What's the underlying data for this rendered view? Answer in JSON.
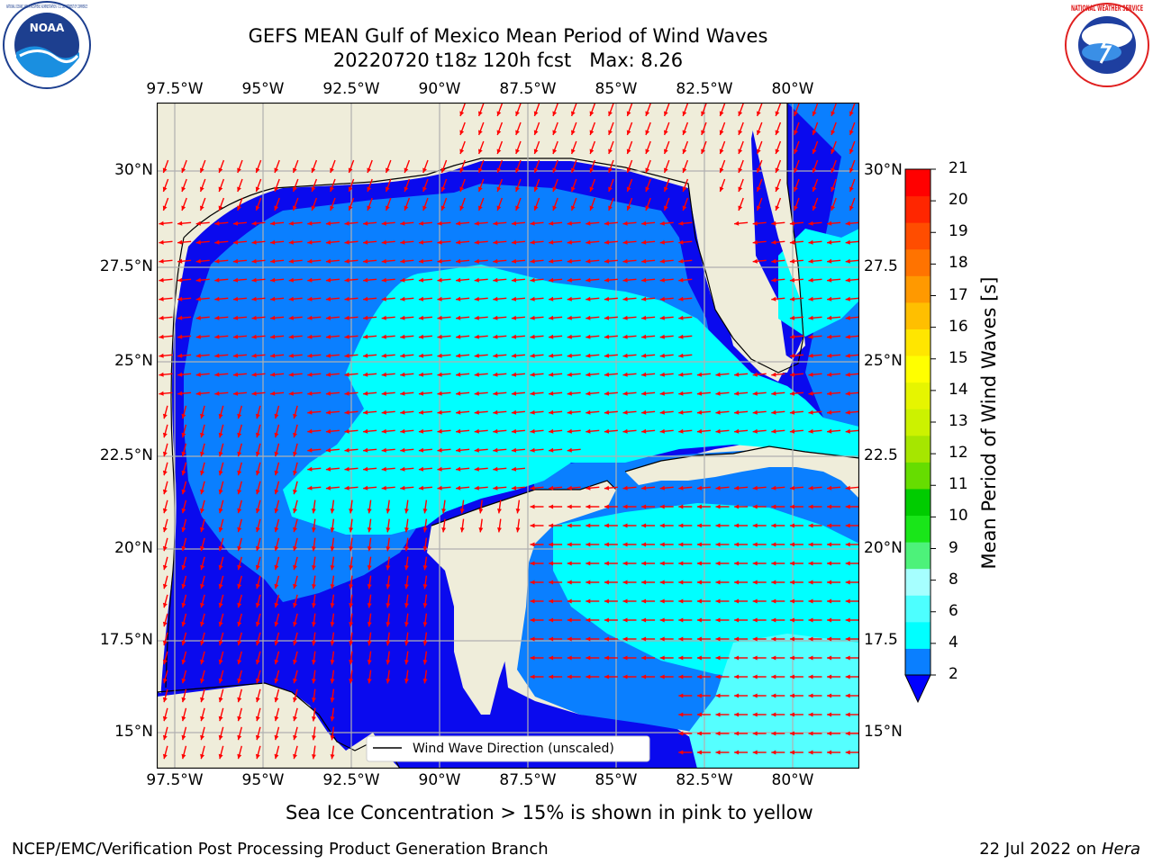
{
  "header": {
    "title_line1": "GEFS MEAN Gulf of Mexico Mean Period of Wind Waves",
    "title_line2": "20220720 t18z 120h fcst   Max: 8.26",
    "left_logo_text": "NOAA",
    "left_logo_ring_text": "NATIONAL OCEANIC AND ATMOSPHERIC ADMINISTRATION · U.S. DEPARTMENT OF COMMERCE",
    "right_logo_ring_text": "NATIONAL WEATHER SERVICE"
  },
  "map": {
    "lon_ticks": [
      "97.5°W",
      "95°W",
      "92.5°W",
      "90°W",
      "87.5°W",
      "85°W",
      "82.5°W",
      "80°W"
    ],
    "lat_ticks_left": [
      "30°N",
      "27.5°N",
      "25°N",
      "22.5°N",
      "20°N",
      "17.5°N",
      "15°N"
    ],
    "lat_ticks_right": [
      "30°N",
      "27.5",
      "25°N",
      "22.5",
      "20°N",
      "17.5",
      "15°N"
    ],
    "legend_label": "Wind Wave Direction (unscaled)",
    "colors": {
      "land": "#efedda",
      "level_2_4": "#0a0aee",
      "level_4_6": "#0a7fff",
      "level_6_8": "#00ffff",
      "level_8_9": "#55ffff",
      "arrow": "#ff0000",
      "grid": "#b0b0b0"
    }
  },
  "colorbar": {
    "title": "Mean Period of Wind Waves [s]",
    "labels": [
      "21",
      "20",
      "19",
      "18",
      "17",
      "16",
      "15",
      "14",
      "13",
      "12",
      "11",
      "10",
      "9",
      "8",
      "6",
      "4",
      "2"
    ],
    "colors_bottom_to_top": [
      "#0a7fff",
      "#00ffff",
      "#4dffff",
      "#a6ffff",
      "#4df27a",
      "#19e619",
      "#00cc00",
      "#66dd00",
      "#a6e600",
      "#ccf200",
      "#e6f500",
      "#ffff00",
      "#ffe600",
      "#ffbf00",
      "#ff9900",
      "#ff7300",
      "#ff4d00",
      "#ff2600",
      "#ff0000"
    ],
    "extend_color": "#0000ff"
  },
  "footer": {
    "note": "Sea Ice Concentration > 15% is shown in pink to yellow",
    "credit": "NCEP/EMC/Verification Post Processing Product Generation Branch",
    "date": "22 Jul 2022 on ",
    "machine": "Hera"
  }
}
